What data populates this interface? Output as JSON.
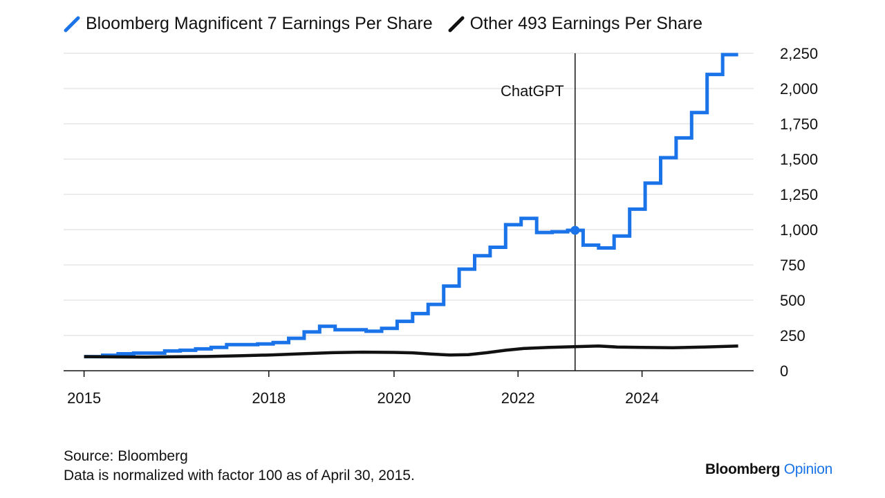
{
  "chart_data": {
    "type": "line",
    "legend": {
      "placement": "top-left",
      "entries": [
        "Bloomberg Magnificent 7 Earnings Per Share",
        "Other 493 Earnings Per Share"
      ]
    },
    "x_ticks": [
      {
        "label": "2015",
        "value": 2015.0
      },
      {
        "label": "2018",
        "value": 2017.98
      },
      {
        "label": "2020",
        "value": 2020.0
      },
      {
        "label": "2022",
        "value": 2022.0
      },
      {
        "label": "2024",
        "value": 2024.0
      }
    ],
    "y_ticks": [
      "0",
      "250",
      "500",
      "750",
      "1,000",
      "1,250",
      "1,500",
      "1,750",
      "2,000",
      "2,250"
    ],
    "ylim": [
      0,
      2250
    ],
    "xlim": [
      2014.67,
      2025.8
    ],
    "grid": true,
    "y_axis_side": "right",
    "annotation": {
      "label": "ChatGPT",
      "x": 2022.92
    },
    "series": [
      {
        "name": "Bloomberg Magnificent 7 Earnings Per Share",
        "color": "#1a73e8",
        "points": [
          [
            2015.0,
            100
          ],
          [
            2015.3,
            100
          ],
          [
            2015.3,
            110
          ],
          [
            2015.55,
            110
          ],
          [
            2015.55,
            120
          ],
          [
            2015.8,
            120
          ],
          [
            2015.8,
            125
          ],
          [
            2016.3,
            125
          ],
          [
            2016.3,
            140
          ],
          [
            2016.55,
            140
          ],
          [
            2016.55,
            145
          ],
          [
            2016.8,
            145
          ],
          [
            2016.8,
            155
          ],
          [
            2017.05,
            155
          ],
          [
            2017.05,
            165
          ],
          [
            2017.3,
            165
          ],
          [
            2017.3,
            185
          ],
          [
            2017.55,
            185
          ],
          [
            2017.55,
            185
          ],
          [
            2017.8,
            185
          ],
          [
            2017.8,
            190
          ],
          [
            2018.05,
            190
          ],
          [
            2018.05,
            200
          ],
          [
            2018.3,
            200
          ],
          [
            2018.3,
            230
          ],
          [
            2018.55,
            230
          ],
          [
            2018.55,
            275
          ],
          [
            2018.8,
            275
          ],
          [
            2018.8,
            315
          ],
          [
            2019.05,
            315
          ],
          [
            2019.05,
            290
          ],
          [
            2019.3,
            290
          ],
          [
            2019.3,
            290
          ],
          [
            2019.55,
            290
          ],
          [
            2019.55,
            280
          ],
          [
            2019.8,
            280
          ],
          [
            2019.8,
            300
          ],
          [
            2020.05,
            300
          ],
          [
            2020.05,
            350
          ],
          [
            2020.3,
            350
          ],
          [
            2020.3,
            405
          ],
          [
            2020.55,
            405
          ],
          [
            2020.55,
            470
          ],
          [
            2020.8,
            470
          ],
          [
            2020.8,
            600
          ],
          [
            2021.05,
            600
          ],
          [
            2021.05,
            720
          ],
          [
            2021.3,
            720
          ],
          [
            2021.3,
            815
          ],
          [
            2021.55,
            815
          ],
          [
            2021.55,
            875
          ],
          [
            2021.8,
            875
          ],
          [
            2021.8,
            1035
          ],
          [
            2022.05,
            1035
          ],
          [
            2022.05,
            1080
          ],
          [
            2022.3,
            1080
          ],
          [
            2022.3,
            980
          ],
          [
            2022.55,
            980
          ],
          [
            2022.55,
            985
          ],
          [
            2022.8,
            985
          ],
          [
            2022.8,
            995
          ],
          [
            2023.05,
            995
          ],
          [
            2023.05,
            890
          ],
          [
            2023.3,
            890
          ],
          [
            2023.3,
            870
          ],
          [
            2023.55,
            870
          ],
          [
            2023.55,
            955
          ],
          [
            2023.8,
            955
          ],
          [
            2023.8,
            1145
          ],
          [
            2024.05,
            1145
          ],
          [
            2024.05,
            1330
          ],
          [
            2024.3,
            1330
          ],
          [
            2024.3,
            1510
          ],
          [
            2024.55,
            1510
          ],
          [
            2024.55,
            1650
          ],
          [
            2024.8,
            1650
          ],
          [
            2024.8,
            1830
          ],
          [
            2025.05,
            1830
          ],
          [
            2025.05,
            2100
          ],
          [
            2025.3,
            2100
          ],
          [
            2025.3,
            2240
          ],
          [
            2025.55,
            2240
          ]
        ]
      },
      {
        "name": "Other 493 Earnings Per Share",
        "color": "#111111",
        "points": [
          [
            2015.0,
            100
          ],
          [
            2015.5,
            98
          ],
          [
            2016.0,
            97
          ],
          [
            2016.5,
            99
          ],
          [
            2017.0,
            101
          ],
          [
            2017.5,
            106
          ],
          [
            2018.0,
            112
          ],
          [
            2018.5,
            120
          ],
          [
            2019.0,
            128
          ],
          [
            2019.5,
            132
          ],
          [
            2020.0,
            130
          ],
          [
            2020.3,
            127
          ],
          [
            2020.6,
            118
          ],
          [
            2020.9,
            112
          ],
          [
            2021.2,
            114
          ],
          [
            2021.5,
            128
          ],
          [
            2021.8,
            145
          ],
          [
            2022.1,
            158
          ],
          [
            2022.5,
            165
          ],
          [
            2022.9,
            170
          ],
          [
            2023.3,
            175
          ],
          [
            2023.6,
            168
          ],
          [
            2024.0,
            165
          ],
          [
            2024.5,
            163
          ],
          [
            2025.0,
            168
          ],
          [
            2025.55,
            175
          ]
        ]
      }
    ]
  },
  "footer": {
    "source": "Source: Bloomberg",
    "note": "Data is normalized with factor 100 as of April 30, 2015."
  },
  "brand": {
    "name": "Bloomberg",
    "section": "Opinion"
  }
}
